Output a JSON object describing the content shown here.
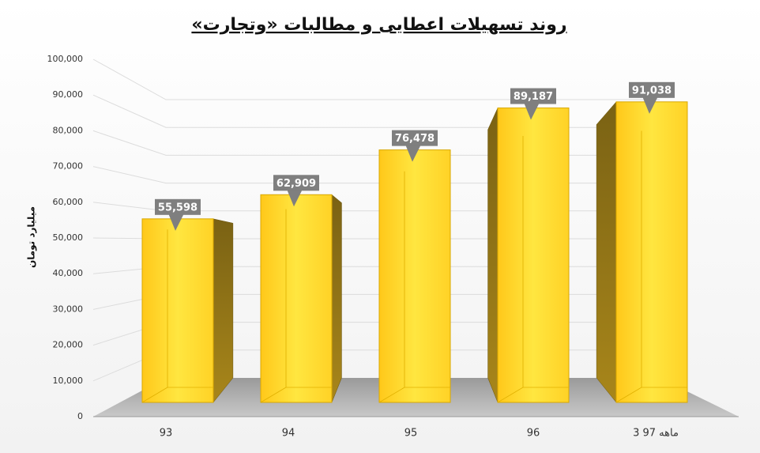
{
  "chart_data": {
    "type": "bar3d",
    "title": "روند تسهیلات اعطایی و مطالبات «وتجارت»",
    "y_axis_label": "میلیارد تومان",
    "categories": [
      "93",
      "94",
      "95",
      "96",
      "3 ماهه 97"
    ],
    "values": [
      55598,
      62909,
      76478,
      89187,
      91038
    ],
    "value_labels": [
      "55,598",
      "62,909",
      "76,478",
      "89,187",
      "91,038"
    ],
    "color": "#ffd21f",
    "ylim": [
      0,
      100000
    ],
    "yticks": [
      0,
      {
        "value": 10000,
        "label": "10,000"
      },
      {
        "value": 20000,
        "label": "20,000"
      },
      {
        "value": 30000,
        "label": "30,000"
      },
      {
        "value": 40000,
        "label": "40,000"
      },
      {
        "value": 50000,
        "label": "50,000"
      },
      {
        "value": 60000,
        "label": "60,000"
      },
      {
        "value": 70000,
        "label": "70,000"
      },
      {
        "value": 80000,
        "label": "80,000"
      },
      {
        "value": 90000,
        "label": "90,000"
      },
      {
        "value": 100000,
        "label": "100,000"
      }
    ],
    "grid": true
  }
}
